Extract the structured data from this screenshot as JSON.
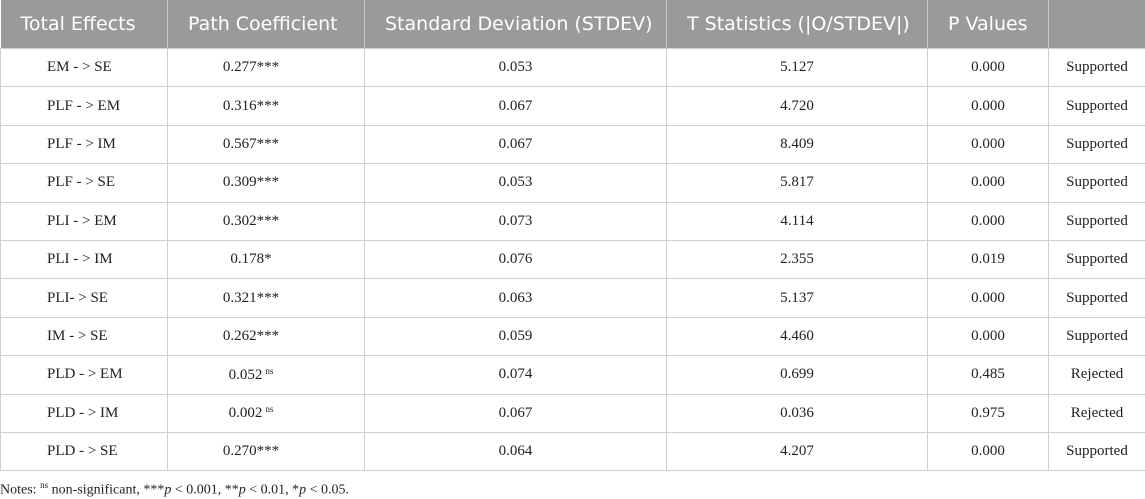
{
  "headers": [
    "Total Effects",
    "Path Coefficient",
    "Standard Deviation (STDEV)",
    "T Statistics (|O/STDEV|)",
    "P Values",
    ""
  ],
  "rows": [
    {
      "effect": "EM - > SE",
      "coef": "0.277***",
      "coef_sup": "",
      "stdev": "0.053",
      "t": "5.127",
      "p": "0.000",
      "decision": "Supported"
    },
    {
      "effect": "PLF - > EM",
      "coef": "0.316***",
      "coef_sup": "",
      "stdev": "0.067",
      "t": "4.720",
      "p": "0.000",
      "decision": "Supported"
    },
    {
      "effect": "PLF - > IM",
      "coef": "0.567***",
      "coef_sup": "",
      "stdev": "0.067",
      "t": "8.409",
      "p": "0.000",
      "decision": "Supported"
    },
    {
      "effect": "PLF - > SE",
      "coef": "0.309***",
      "coef_sup": "",
      "stdev": "0.053",
      "t": "5.817",
      "p": "0.000",
      "decision": "Supported"
    },
    {
      "effect": "PLI - > EM",
      "coef": "0.302***",
      "coef_sup": "",
      "stdev": "0.073",
      "t": "4.114",
      "p": "0.000",
      "decision": "Supported"
    },
    {
      "effect": "PLI - > IM",
      "coef": "0.178*",
      "coef_sup": "",
      "stdev": "0.076",
      "t": "2.355",
      "p": "0.019",
      "decision": "Supported"
    },
    {
      "effect": "PLI- > SE",
      "coef": "0.321***",
      "coef_sup": "",
      "stdev": "0.063",
      "t": "5.137",
      "p": "0.000",
      "decision": "Supported"
    },
    {
      "effect": "IM - > SE",
      "coef": "0.262***",
      "coef_sup": "",
      "stdev": "0.059",
      "t": "4.460",
      "p": "0.000",
      "decision": "Supported"
    },
    {
      "effect": "PLD - > EM",
      "coef": "0.052",
      "coef_sup": "ns",
      "stdev": "0.074",
      "t": "0.699",
      "p": "0.485",
      "decision": "Rejected"
    },
    {
      "effect": "PLD - > IM",
      "coef": "0.002",
      "coef_sup": "ns",
      "stdev": "0.067",
      "t": "0.036",
      "p": "0.975",
      "decision": "Rejected"
    },
    {
      "effect": "PLD - > SE",
      "coef": "0.270***",
      "coef_sup": "",
      "stdev": "0.064",
      "t": "4.207",
      "p": "0.000",
      "decision": "Supported"
    }
  ],
  "notes": {
    "prefix": "Notes: ",
    "ns_sup": "ns",
    "text1": " non-significant, ***",
    "p1": "p",
    "text2": " < 0.001, **",
    "p2": "p",
    "text3": " < 0.01, *",
    "p3": "p",
    "text4": " < 0.05."
  }
}
